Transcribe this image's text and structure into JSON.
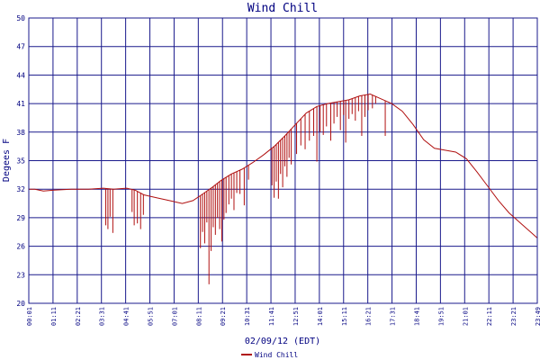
{
  "chart_data": {
    "type": "line",
    "title": "Wind Chill",
    "xlabel": "02/09/12 (EDT)",
    "ylabel": "Degees F",
    "x_tick_labels": [
      "00:01",
      "01:11",
      "02:21",
      "03:31",
      "04:41",
      "05:51",
      "07:01",
      "08:11",
      "09:21",
      "10:31",
      "11:41",
      "12:51",
      "14:01",
      "15:11",
      "16:21",
      "17:31",
      "18:41",
      "19:51",
      "21:01",
      "22:11",
      "23:21",
      "23:49"
    ],
    "y_ticks": [
      20,
      23,
      26,
      29,
      32,
      35,
      38,
      41,
      44,
      47,
      50
    ],
    "ylim": [
      20,
      50
    ],
    "xlim_hours": [
      0.0167,
      23.8167
    ],
    "grid": true,
    "legend_position": "bottom-center",
    "colors": {
      "series": "#b01010",
      "grid": "#1a1a8c",
      "text": "#000080",
      "background": "#ffffff"
    },
    "series": [
      {
        "name": "Wind Chill",
        "x_hours": [
          0.02,
          0.3,
          0.7,
          1.2,
          2.0,
          2.8,
          3.5,
          4.0,
          4.6,
          5.0,
          5.4,
          6.0,
          6.6,
          7.2,
          7.7,
          8.1,
          8.6,
          9.0,
          9.5,
          10.0,
          10.5,
          11.0,
          11.5,
          12.0,
          12.5,
          13.0,
          13.5,
          14.0,
          14.5,
          15.0,
          15.5,
          16.0,
          16.5,
          17.0,
          17.5,
          18.0,
          18.5,
          19.0,
          19.5,
          20.0,
          20.5,
          21.0,
          21.5,
          22.0,
          22.5,
          23.0,
          23.5,
          23.8
        ],
        "values": [
          32.0,
          32.0,
          31.8,
          31.9,
          32.0,
          32.0,
          32.1,
          32.0,
          32.1,
          31.9,
          31.4,
          31.1,
          30.8,
          30.5,
          30.8,
          31.4,
          32.2,
          32.9,
          33.6,
          34.1,
          34.8,
          35.6,
          36.5,
          37.6,
          38.8,
          40.0,
          40.7,
          41.0,
          41.2,
          41.4,
          41.8,
          42.0,
          41.5,
          41.0,
          40.2,
          38.8,
          37.2,
          36.3,
          36.1,
          35.9,
          35.2,
          33.8,
          32.3,
          30.8,
          29.5,
          28.5,
          27.5,
          26.9
        ],
        "dips": [
          {
            "x": 3.62,
            "y": 28.2
          },
          {
            "x": 3.72,
            "y": 27.8
          },
          {
            "x": 3.82,
            "y": 29.1
          },
          {
            "x": 3.95,
            "y": 27.4
          },
          {
            "x": 4.85,
            "y": 29.6
          },
          {
            "x": 4.95,
            "y": 28.2
          },
          {
            "x": 5.1,
            "y": 28.4
          },
          {
            "x": 5.25,
            "y": 27.8
          },
          {
            "x": 5.38,
            "y": 29.3
          },
          {
            "x": 8.05,
            "y": 25.8
          },
          {
            "x": 8.15,
            "y": 27.5
          },
          {
            "x": 8.25,
            "y": 26.3
          },
          {
            "x": 8.35,
            "y": 28.5
          },
          {
            "x": 8.45,
            "y": 22.0
          },
          {
            "x": 8.55,
            "y": 25.5
          },
          {
            "x": 8.65,
            "y": 28.0
          },
          {
            "x": 8.75,
            "y": 27.2
          },
          {
            "x": 8.85,
            "y": 29.0
          },
          {
            "x": 8.95,
            "y": 27.8
          },
          {
            "x": 9.05,
            "y": 26.5
          },
          {
            "x": 9.15,
            "y": 28.8
          },
          {
            "x": 9.25,
            "y": 29.5
          },
          {
            "x": 9.38,
            "y": 30.4
          },
          {
            "x": 9.5,
            "y": 31.0
          },
          {
            "x": 9.62,
            "y": 29.8
          },
          {
            "x": 9.75,
            "y": 31.6
          },
          {
            "x": 9.9,
            "y": 31.5
          },
          {
            "x": 10.1,
            "y": 30.3
          },
          {
            "x": 10.3,
            "y": 33.0
          },
          {
            "x": 11.4,
            "y": 32.4
          },
          {
            "x": 11.5,
            "y": 31.1
          },
          {
            "x": 11.6,
            "y": 32.8
          },
          {
            "x": 11.7,
            "y": 31.0
          },
          {
            "x": 11.8,
            "y": 33.6
          },
          {
            "x": 11.9,
            "y": 32.2
          },
          {
            "x": 12.0,
            "y": 34.4
          },
          {
            "x": 12.1,
            "y": 33.3
          },
          {
            "x": 12.2,
            "y": 35.3
          },
          {
            "x": 12.3,
            "y": 34.6
          },
          {
            "x": 12.55,
            "y": 35.7
          },
          {
            "x": 12.75,
            "y": 36.6
          },
          {
            "x": 12.95,
            "y": 36.2
          },
          {
            "x": 13.15,
            "y": 37.1
          },
          {
            "x": 13.35,
            "y": 37.6
          },
          {
            "x": 13.5,
            "y": 34.9
          },
          {
            "x": 13.65,
            "y": 38.0
          },
          {
            "x": 13.8,
            "y": 37.7
          },
          {
            "x": 13.95,
            "y": 38.6
          },
          {
            "x": 14.15,
            "y": 37.1
          },
          {
            "x": 14.3,
            "y": 38.9
          },
          {
            "x": 14.45,
            "y": 39.6
          },
          {
            "x": 14.6,
            "y": 38.2
          },
          {
            "x": 14.75,
            "y": 39.8
          },
          {
            "x": 14.85,
            "y": 36.9
          },
          {
            "x": 15.0,
            "y": 39.4
          },
          {
            "x": 15.15,
            "y": 39.9
          },
          {
            "x": 15.3,
            "y": 39.2
          },
          {
            "x": 15.45,
            "y": 40.2
          },
          {
            "x": 15.6,
            "y": 37.6
          },
          {
            "x": 15.75,
            "y": 39.6
          },
          {
            "x": 15.9,
            "y": 40.3
          },
          {
            "x": 16.1,
            "y": 40.5
          },
          {
            "x": 16.25,
            "y": 41.0
          },
          {
            "x": 16.7,
            "y": 37.6
          }
        ]
      }
    ]
  }
}
